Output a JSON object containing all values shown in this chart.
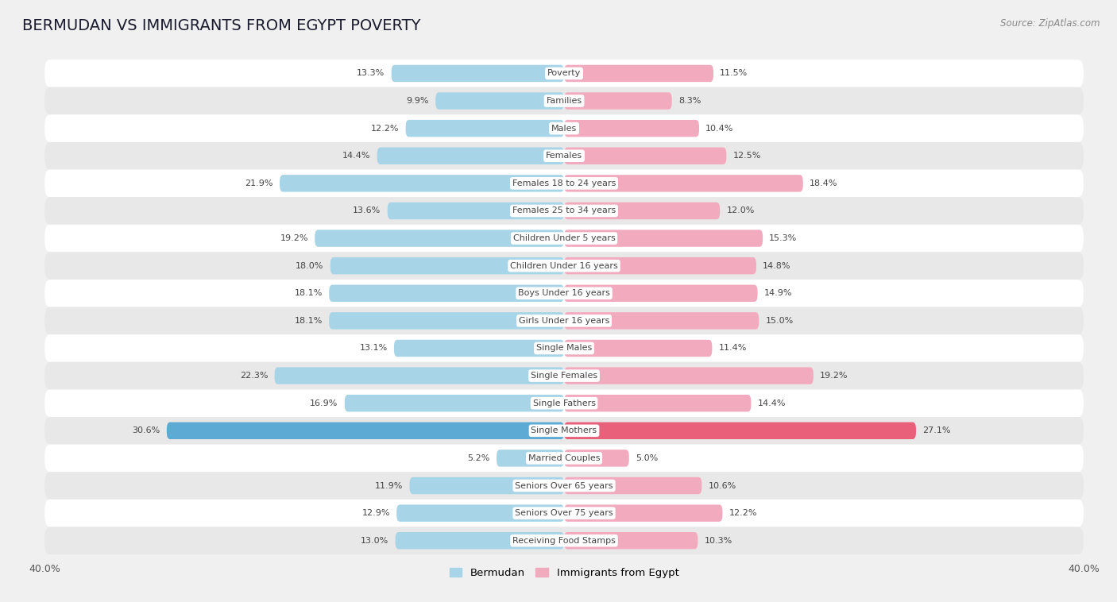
{
  "title": "BERMUDAN VS IMMIGRANTS FROM EGYPT POVERTY",
  "source": "Source: ZipAtlas.com",
  "categories": [
    "Poverty",
    "Families",
    "Males",
    "Females",
    "Females 18 to 24 years",
    "Females 25 to 34 years",
    "Children Under 5 years",
    "Children Under 16 years",
    "Boys Under 16 years",
    "Girls Under 16 years",
    "Single Males",
    "Single Females",
    "Single Fathers",
    "Single Mothers",
    "Married Couples",
    "Seniors Over 65 years",
    "Seniors Over 75 years",
    "Receiving Food Stamps"
  ],
  "bermudan": [
    13.3,
    9.9,
    12.2,
    14.4,
    21.9,
    13.6,
    19.2,
    18.0,
    18.1,
    18.1,
    13.1,
    22.3,
    16.9,
    30.6,
    5.2,
    11.9,
    12.9,
    13.0
  ],
  "egypt": [
    11.5,
    8.3,
    10.4,
    12.5,
    18.4,
    12.0,
    15.3,
    14.8,
    14.9,
    15.0,
    11.4,
    19.2,
    14.4,
    27.1,
    5.0,
    10.6,
    12.2,
    10.3
  ],
  "bermudan_color": "#a8d4e8",
  "egypt_color": "#f2abbe",
  "bermudan_highlight": "#5dabd4",
  "egypt_highlight": "#e8607a",
  "axis_limit": 40.0,
  "background_color": "#f0f0f0",
  "bar_row_color": "#ffffff",
  "alt_row_color": "#e8e8e8",
  "legend_label_bermudan": "Bermudan",
  "legend_label_egypt": "Immigrants from Egypt",
  "title_fontsize": 14,
  "label_fontsize": 8,
  "value_fontsize": 8
}
